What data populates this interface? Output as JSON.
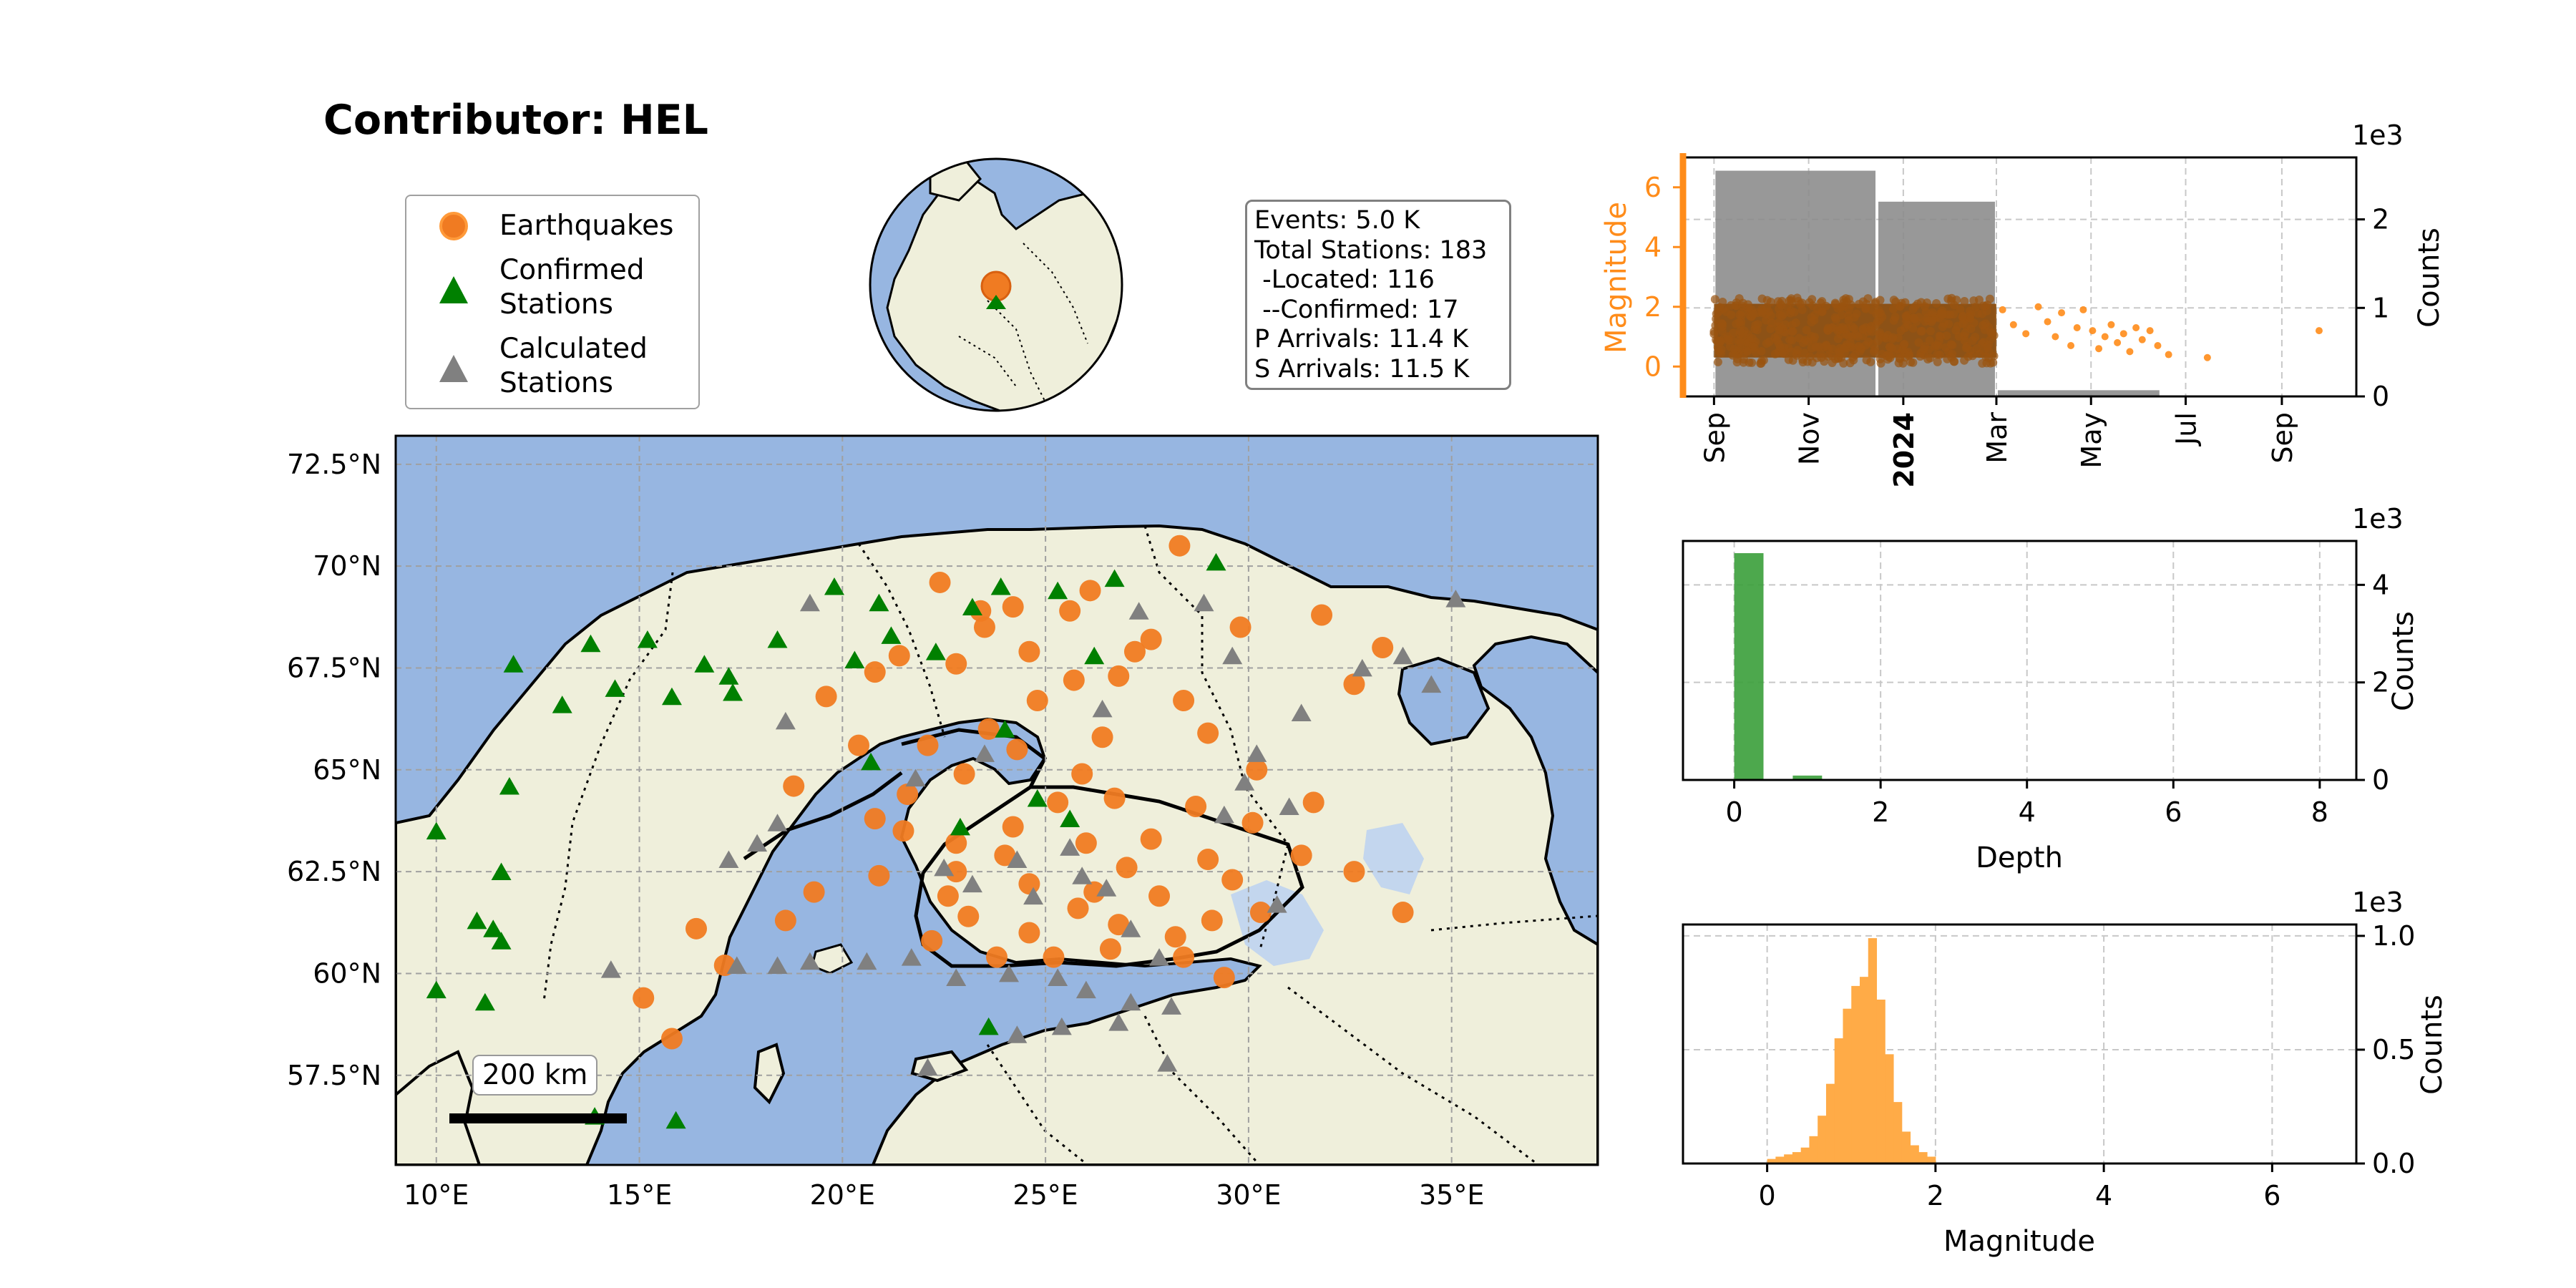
{
  "title": "Contributor: HEL",
  "legend": {
    "earthquakes": "Earthquakes",
    "confirmed_line1": "Confirmed",
    "confirmed_line2": "Stations",
    "calculated_line1": "Calculated",
    "calculated_line2": "Stations"
  },
  "stats": {
    "events": "Events: 5.0 K",
    "total_stations": "Total Stations: 183",
    "located": " -Located: 116",
    "confirmed": " --Confirmed: 17",
    "p_arrivals": "P Arrivals: 11.4 K",
    "s_arrivals": "S Arrivals: 11.5 K"
  },
  "scale_label": "200 km",
  "colors": {
    "ocean": "#97b6e1",
    "land": "#efefdb",
    "earthquake": "#f07b22",
    "confirmed": "#008000",
    "calculated": "#808080",
    "magnitude_axis": "#ff8c1a",
    "depth_bar": "#3a9e3a",
    "magnitude_bar": "#ffab47"
  },
  "chart_data": [
    {
      "type": "scatter",
      "name": "map",
      "x_ticks": [
        "10°E",
        "15°E",
        "20°E",
        "25°E",
        "30°E",
        "35°E"
      ],
      "y_ticks": [
        "72.5°N",
        "70°N",
        "67.5°N",
        "65°N",
        "62.5°N",
        "60°N",
        "57.5°N"
      ],
      "xlim": [
        9,
        38.6
      ],
      "ylim": [
        55.3,
        73.2
      ],
      "earthquakes": [
        [
          23.5,
          68.5
        ],
        [
          25.6,
          68.9
        ],
        [
          22.8,
          67.6
        ],
        [
          20.8,
          67.4
        ],
        [
          27.6,
          68.2
        ],
        [
          24.6,
          67.9
        ],
        [
          26.8,
          67.3
        ],
        [
          29.8,
          68.5
        ],
        [
          31.8,
          68.8
        ],
        [
          33.3,
          68.0
        ],
        [
          28.4,
          66.7
        ],
        [
          26.4,
          65.8
        ],
        [
          25.9,
          64.9
        ],
        [
          29.0,
          65.9
        ],
        [
          30.2,
          65.0
        ],
        [
          22.1,
          65.6
        ],
        [
          23.6,
          66.0
        ],
        [
          24.3,
          65.5
        ],
        [
          21.6,
          64.4
        ],
        [
          20.8,
          63.8
        ],
        [
          22.8,
          63.2
        ],
        [
          24.2,
          63.6
        ],
        [
          26.0,
          63.2
        ],
        [
          27.6,
          63.3
        ],
        [
          29.0,
          62.8
        ],
        [
          22.8,
          62.5
        ],
        [
          24.6,
          62.2
        ],
        [
          26.2,
          62.0
        ],
        [
          27.8,
          61.9
        ],
        [
          29.6,
          62.3
        ],
        [
          31.3,
          62.9
        ],
        [
          32.6,
          62.5
        ],
        [
          33.8,
          61.5
        ],
        [
          23.1,
          61.4
        ],
        [
          24.6,
          61.0
        ],
        [
          26.8,
          61.2
        ],
        [
          28.2,
          60.9
        ],
        [
          30.3,
          61.5
        ],
        [
          22.2,
          60.8
        ],
        [
          23.8,
          60.4
        ],
        [
          25.2,
          60.4
        ],
        [
          26.6,
          60.6
        ],
        [
          28.4,
          60.4
        ],
        [
          29.4,
          59.9
        ],
        [
          17.1,
          60.2
        ],
        [
          18.6,
          61.3
        ],
        [
          19.3,
          62.0
        ],
        [
          20.9,
          62.4
        ],
        [
          15.1,
          59.4
        ],
        [
          15.8,
          58.4
        ],
        [
          16.4,
          61.1
        ],
        [
          20.4,
          65.6
        ],
        [
          19.6,
          66.8
        ],
        [
          21.4,
          67.8
        ],
        [
          23.4,
          68.9
        ],
        [
          27.2,
          67.9
        ],
        [
          25.7,
          67.2
        ],
        [
          32.6,
          67.1
        ],
        [
          31.6,
          64.2
        ],
        [
          30.1,
          63.7
        ],
        [
          18.8,
          64.6
        ],
        [
          24.8,
          66.7
        ],
        [
          26.7,
          64.3
        ],
        [
          28.7,
          64.1
        ],
        [
          23.0,
          64.9
        ],
        [
          25.3,
          64.2
        ],
        [
          22.6,
          61.9
        ],
        [
          25.8,
          61.6
        ],
        [
          29.1,
          61.3
        ],
        [
          24.0,
          62.9
        ],
        [
          21.5,
          63.5
        ],
        [
          27.0,
          62.6
        ],
        [
          26.1,
          69.4
        ],
        [
          28.3,
          70.5
        ],
        [
          22.4,
          69.6
        ],
        [
          24.2,
          69.0
        ]
      ],
      "confirmed_stations": [
        [
          10.0,
          63.5
        ],
        [
          11.9,
          67.6
        ],
        [
          11.8,
          64.6
        ],
        [
          11.6,
          62.5
        ],
        [
          11.0,
          61.3
        ],
        [
          11.4,
          61.1
        ],
        [
          11.6,
          60.8
        ],
        [
          11.2,
          59.3
        ],
        [
          10.0,
          59.6
        ],
        [
          13.1,
          66.6
        ],
        [
          13.8,
          68.1
        ],
        [
          14.4,
          67.0
        ],
        [
          15.2,
          68.2
        ],
        [
          15.8,
          66.8
        ],
        [
          16.6,
          67.6
        ],
        [
          17.2,
          67.3
        ],
        [
          18.4,
          68.2
        ],
        [
          19.8,
          69.5
        ],
        [
          20.9,
          69.1
        ],
        [
          21.2,
          68.3
        ],
        [
          22.3,
          67.9
        ],
        [
          23.2,
          69.0
        ],
        [
          23.9,
          69.5
        ],
        [
          25.3,
          69.4
        ],
        [
          26.7,
          69.7
        ],
        [
          29.2,
          70.1
        ],
        [
          26.2,
          67.8
        ],
        [
          20.7,
          65.2
        ],
        [
          24.8,
          64.3
        ],
        [
          22.9,
          63.6
        ],
        [
          23.6,
          58.7
        ],
        [
          13.9,
          56.5
        ],
        [
          15.9,
          56.4
        ],
        [
          25.6,
          63.8
        ],
        [
          24.0,
          66.0
        ],
        [
          20.3,
          67.7
        ],
        [
          17.3,
          66.9
        ]
      ],
      "calculated_stations": [
        [
          19.2,
          69.1
        ],
        [
          18.6,
          66.2
        ],
        [
          18.4,
          63.7
        ],
        [
          17.9,
          63.2
        ],
        [
          17.2,
          62.8
        ],
        [
          17.4,
          60.2
        ],
        [
          18.4,
          60.2
        ],
        [
          19.2,
          60.3
        ],
        [
          20.6,
          60.3
        ],
        [
          21.7,
          60.4
        ],
        [
          22.8,
          59.9
        ],
        [
          24.1,
          60.0
        ],
        [
          25.3,
          59.9
        ],
        [
          26.0,
          59.6
        ],
        [
          27.1,
          59.3
        ],
        [
          28.1,
          59.2
        ],
        [
          26.8,
          58.8
        ],
        [
          25.4,
          58.7
        ],
        [
          24.3,
          58.5
        ],
        [
          28.0,
          57.8
        ],
        [
          22.1,
          57.7
        ],
        [
          14.3,
          60.1
        ],
        [
          29.4,
          63.9
        ],
        [
          29.9,
          64.7
        ],
        [
          30.2,
          65.4
        ],
        [
          31.3,
          66.4
        ],
        [
          33.8,
          67.8
        ],
        [
          34.5,
          67.1
        ],
        [
          32.8,
          67.5
        ],
        [
          35.1,
          69.2
        ],
        [
          29.6,
          67.8
        ],
        [
          27.3,
          68.9
        ],
        [
          28.9,
          69.1
        ],
        [
          26.4,
          66.5
        ],
        [
          23.5,
          65.4
        ],
        [
          24.7,
          61.9
        ],
        [
          25.9,
          62.4
        ],
        [
          27.1,
          61.1
        ],
        [
          27.8,
          60.4
        ],
        [
          30.7,
          61.7
        ],
        [
          21.8,
          64.8
        ],
        [
          22.5,
          62.6
        ],
        [
          23.2,
          62.2
        ],
        [
          24.3,
          62.8
        ],
        [
          25.6,
          63.1
        ],
        [
          26.5,
          62.1
        ],
        [
          31.0,
          64.1
        ]
      ]
    },
    {
      "type": "scatter",
      "name": "time_magnitude",
      "x_ticks": [
        "Sep",
        "Nov",
        "2024",
        "Mar",
        "May",
        "Jul",
        "Sep"
      ],
      "ylabel": "Magnitude",
      "ylim": [
        -1,
        7
      ],
      "y_ticks": [
        0,
        2,
        4,
        6
      ],
      "y2label": "Counts",
      "y2_scale": "1e3",
      "y2lim": [
        0,
        2.7
      ],
      "y2_ticks": [
        0,
        1,
        2
      ],
      "monthly_bins": [
        {
          "start": "2023-09-01",
          "end": "2023-12-15",
          "count": 2.55
        },
        {
          "start": "2023-12-15",
          "end": "2024-03-01",
          "count": 2.2
        },
        {
          "start": "2024-03-01",
          "end": "2024-06-15",
          "count": 0.07
        }
      ],
      "dense_range": {
        "start": "2023-09-01",
        "end": "2024-03-01",
        "mag_min": 0.3,
        "mag_max": 2.1
      },
      "sparse_points": [
        [
          "2024-03-05",
          1.9
        ],
        [
          "2024-03-12",
          1.4
        ],
        [
          "2024-03-20",
          1.1
        ],
        [
          "2024-03-28",
          2.0
        ],
        [
          "2024-04-03",
          1.5
        ],
        [
          "2024-04-08",
          1.0
        ],
        [
          "2024-04-12",
          1.8
        ],
        [
          "2024-04-18",
          0.7
        ],
        [
          "2024-04-22",
          1.3
        ],
        [
          "2024-04-26",
          1.9
        ],
        [
          "2024-05-02",
          1.2
        ],
        [
          "2024-05-06",
          0.6
        ],
        [
          "2024-05-10",
          1.0
        ],
        [
          "2024-05-14",
          1.4
        ],
        [
          "2024-05-18",
          0.8
        ],
        [
          "2024-05-22",
          1.1
        ],
        [
          "2024-05-26",
          0.5
        ],
        [
          "2024-05-30",
          1.3
        ],
        [
          "2024-06-03",
          0.9
        ],
        [
          "2024-06-08",
          1.2
        ],
        [
          "2024-06-13",
          0.7
        ],
        [
          "2024-06-20",
          0.4
        ],
        [
          "2024-07-15",
          0.3
        ],
        [
          "2024-09-25",
          1.2
        ]
      ]
    },
    {
      "type": "bar",
      "name": "depth_histogram",
      "xlabel": "Depth",
      "ylabel": "Counts",
      "y_scale": "1e3",
      "xlim": [
        -0.7,
        8.5
      ],
      "ylim": [
        0,
        4.9
      ],
      "x_ticks": [
        0,
        2,
        4,
        6,
        8
      ],
      "y_ticks": [
        0,
        2,
        4
      ],
      "bins": [
        [
          0,
          0.4,
          4.65
        ],
        [
          0.8,
          1.2,
          0.09
        ]
      ]
    },
    {
      "type": "bar",
      "name": "magnitude_histogram",
      "xlabel": "Magnitude",
      "ylabel": "Counts",
      "y_scale": "1e3",
      "xlim": [
        -1,
        7
      ],
      "ylim": [
        0,
        1.05
      ],
      "x_ticks": [
        0,
        2,
        4,
        6
      ],
      "y_ticks": [
        "0.0",
        "0.5",
        "1.0"
      ],
      "bin_start": 0,
      "bin_width": 0.1,
      "counts": [
        0.02,
        0.03,
        0.04,
        0.05,
        0.07,
        0.12,
        0.21,
        0.35,
        0.55,
        0.68,
        0.78,
        0.82,
        0.99,
        0.72,
        0.48,
        0.27,
        0.14,
        0.08,
        0.05,
        0.03
      ]
    }
  ]
}
